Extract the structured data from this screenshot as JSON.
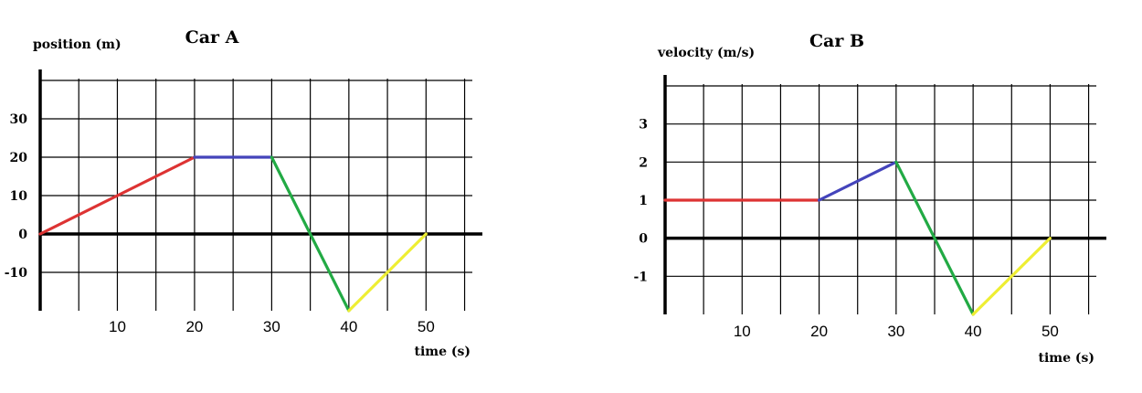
{
  "chart_data": [
    {
      "type": "line",
      "title": "Car A",
      "ylabel": "position (m)",
      "xlabel": "time (s)",
      "xlim": [
        0,
        56
      ],
      "ylim": [
        -20,
        40
      ],
      "grid": true,
      "x_ticks": [
        10,
        20,
        30,
        40,
        50
      ],
      "y_ticks": [
        -10,
        0,
        10,
        20,
        30
      ],
      "x_tick_labels": [
        "10",
        "20",
        "30",
        "40",
        "50"
      ],
      "y_tick_labels": [
        "-10",
        "0",
        "10",
        "20",
        "30"
      ],
      "segments": [
        {
          "color": "#dd3333",
          "points": [
            [
              0,
              0
            ],
            [
              20,
              20
            ]
          ]
        },
        {
          "color": "#4444bb",
          "points": [
            [
              20,
              20
            ],
            [
              30,
              20
            ]
          ]
        },
        {
          "color": "#22aa44",
          "points": [
            [
              30,
              20
            ],
            [
              40,
              -20
            ]
          ]
        },
        {
          "color": "#eeee33",
          "points": [
            [
              40,
              -20
            ],
            [
              50,
              0
            ]
          ]
        }
      ]
    },
    {
      "type": "line",
      "title": "Car B",
      "ylabel": "velocity (m/s)",
      "xlabel": "time (s)",
      "xlim": [
        0,
        56
      ],
      "ylim": [
        -2,
        4
      ],
      "grid": true,
      "x_ticks": [
        10,
        20,
        30,
        40,
        50
      ],
      "y_ticks": [
        -1,
        0,
        1,
        2,
        3
      ],
      "x_tick_labels": [
        "10",
        "20",
        "30",
        "40",
        "50"
      ],
      "y_tick_labels": [
        "-1",
        "0",
        "1",
        "2",
        "3"
      ],
      "segments": [
        {
          "color": "#dd3333",
          "points": [
            [
              0,
              1
            ],
            [
              20,
              1
            ]
          ]
        },
        {
          "color": "#4444bb",
          "points": [
            [
              20,
              1
            ],
            [
              30,
              2
            ]
          ]
        },
        {
          "color": "#22aa44",
          "points": [
            [
              30,
              2
            ],
            [
              40,
              -2
            ]
          ]
        },
        {
          "color": "#eeee33",
          "points": [
            [
              40,
              -2
            ],
            [
              50,
              0
            ]
          ]
        }
      ]
    }
  ]
}
